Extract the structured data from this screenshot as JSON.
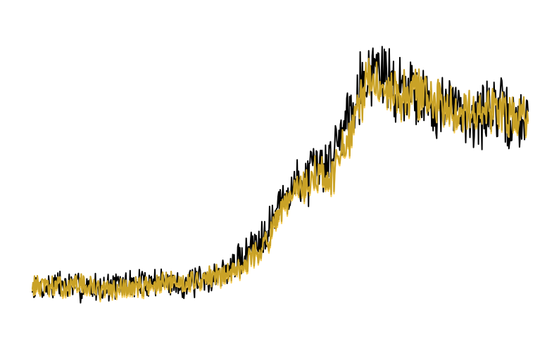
{
  "chart_data": {
    "type": "line",
    "title": "",
    "xlabel": "",
    "ylabel": "",
    "axes_visible": false,
    "grid": false,
    "legend": "none",
    "xlim": [
      0,
      100
    ],
    "ylim": [
      0,
      100
    ],
    "series": [
      {
        "name": "series-black",
        "color": "#000000",
        "noise": 11,
        "seed": 7,
        "x": [
          0,
          5,
          10,
          15,
          20,
          25,
          30,
          35,
          40,
          45,
          48,
          50,
          53,
          56,
          58,
          60,
          62,
          64,
          66,
          68,
          70,
          72,
          74,
          76,
          78,
          80,
          82,
          84,
          86,
          88,
          90,
          92,
          94,
          96,
          98,
          100
        ],
        "y": [
          10,
          12,
          11,
          11,
          12,
          13,
          12,
          13,
          17,
          26,
          32,
          39,
          45,
          48,
          51,
          54,
          62,
          72,
          78,
          83,
          84,
          80,
          77,
          79,
          75,
          73,
          71,
          72,
          70,
          69,
          68,
          70,
          71,
          67,
          65,
          70
        ]
      },
      {
        "name": "series-gold",
        "color": "#c9a227",
        "band_color": "#f5c94a",
        "noise": 8,
        "seed": 13,
        "x": [
          0,
          5,
          10,
          15,
          20,
          25,
          30,
          35,
          40,
          45,
          48,
          50,
          53,
          56,
          58,
          60,
          62,
          64,
          66,
          68,
          70,
          72,
          74,
          76,
          78,
          80,
          82,
          84,
          86,
          88,
          90,
          92,
          94,
          96,
          98,
          100
        ],
        "y": [
          12,
          11,
          12,
          10,
          11,
          12,
          13,
          14,
          16,
          22,
          28,
          35,
          43,
          46,
          50,
          45,
          55,
          60,
          72,
          80,
          80,
          78,
          75,
          76,
          77,
          74,
          72,
          73,
          71,
          72,
          70,
          71,
          72,
          68,
          69,
          71
        ]
      }
    ]
  }
}
